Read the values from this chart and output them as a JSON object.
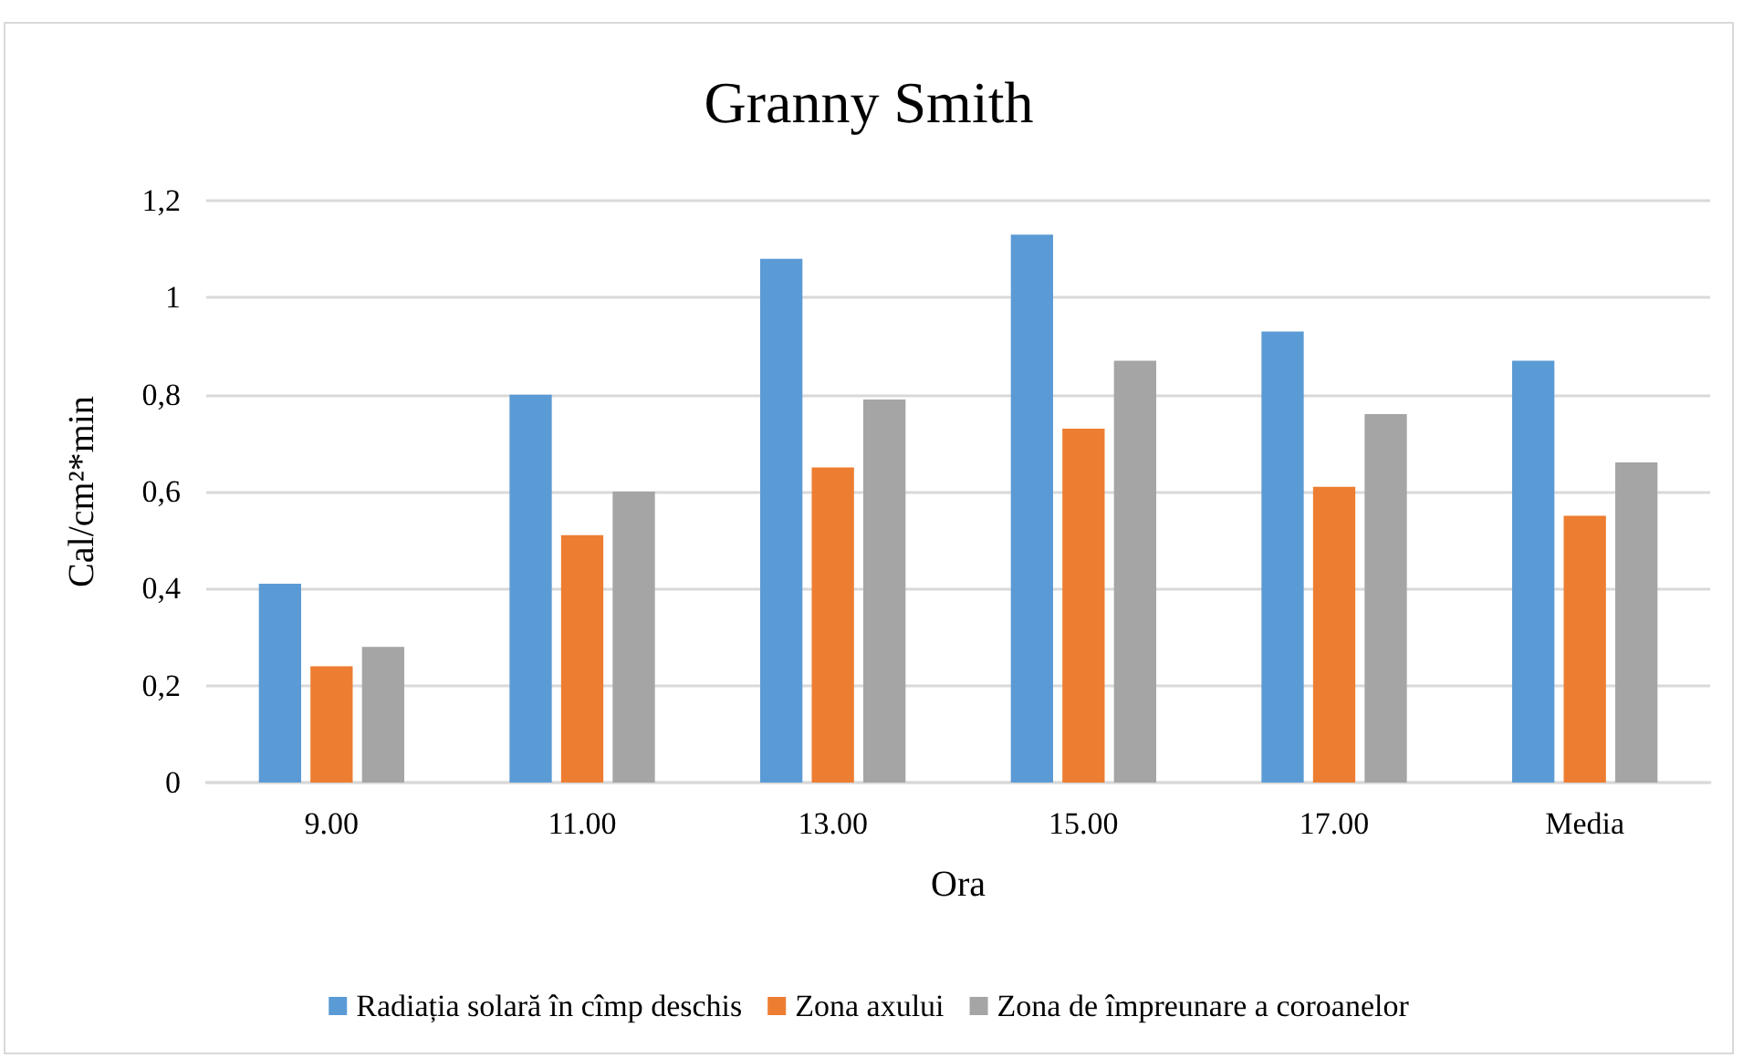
{
  "chart_data": {
    "type": "bar",
    "title": "Granny Smith",
    "xlabel": "Ora",
    "ylabel": "Cal/cm²*min",
    "categories": [
      "9.00",
      "11.00",
      "13.00",
      "15.00",
      "17.00",
      "Media"
    ],
    "series": [
      {
        "name": "Radiația solară în cîmp deschis",
        "color": "#5b9bd5",
        "values": [
          0.41,
          0.8,
          1.08,
          1.13,
          0.93,
          0.87
        ]
      },
      {
        "name": "Zona axului",
        "color": "#ed7d31",
        "values": [
          0.24,
          0.51,
          0.65,
          0.73,
          0.61,
          0.55
        ]
      },
      {
        "name": "Zona de împreunare a coroanelor",
        "color": "#a5a5a5",
        "values": [
          0.28,
          0.6,
          0.79,
          0.87,
          0.76,
          0.66
        ]
      }
    ],
    "ylim": [
      0,
      1.2
    ],
    "yticks": [
      0,
      {
        "value": 0.2,
        "label": "0,2"
      },
      {
        "value": 0.4,
        "label": "0,4"
      },
      {
        "value": 0.6,
        "label": "0,6"
      },
      {
        "value": 0.8,
        "label": "0,8"
      },
      1,
      {
        "value": 1.2,
        "label": "1,2"
      }
    ],
    "grid": "y",
    "legend": "bottom"
  }
}
